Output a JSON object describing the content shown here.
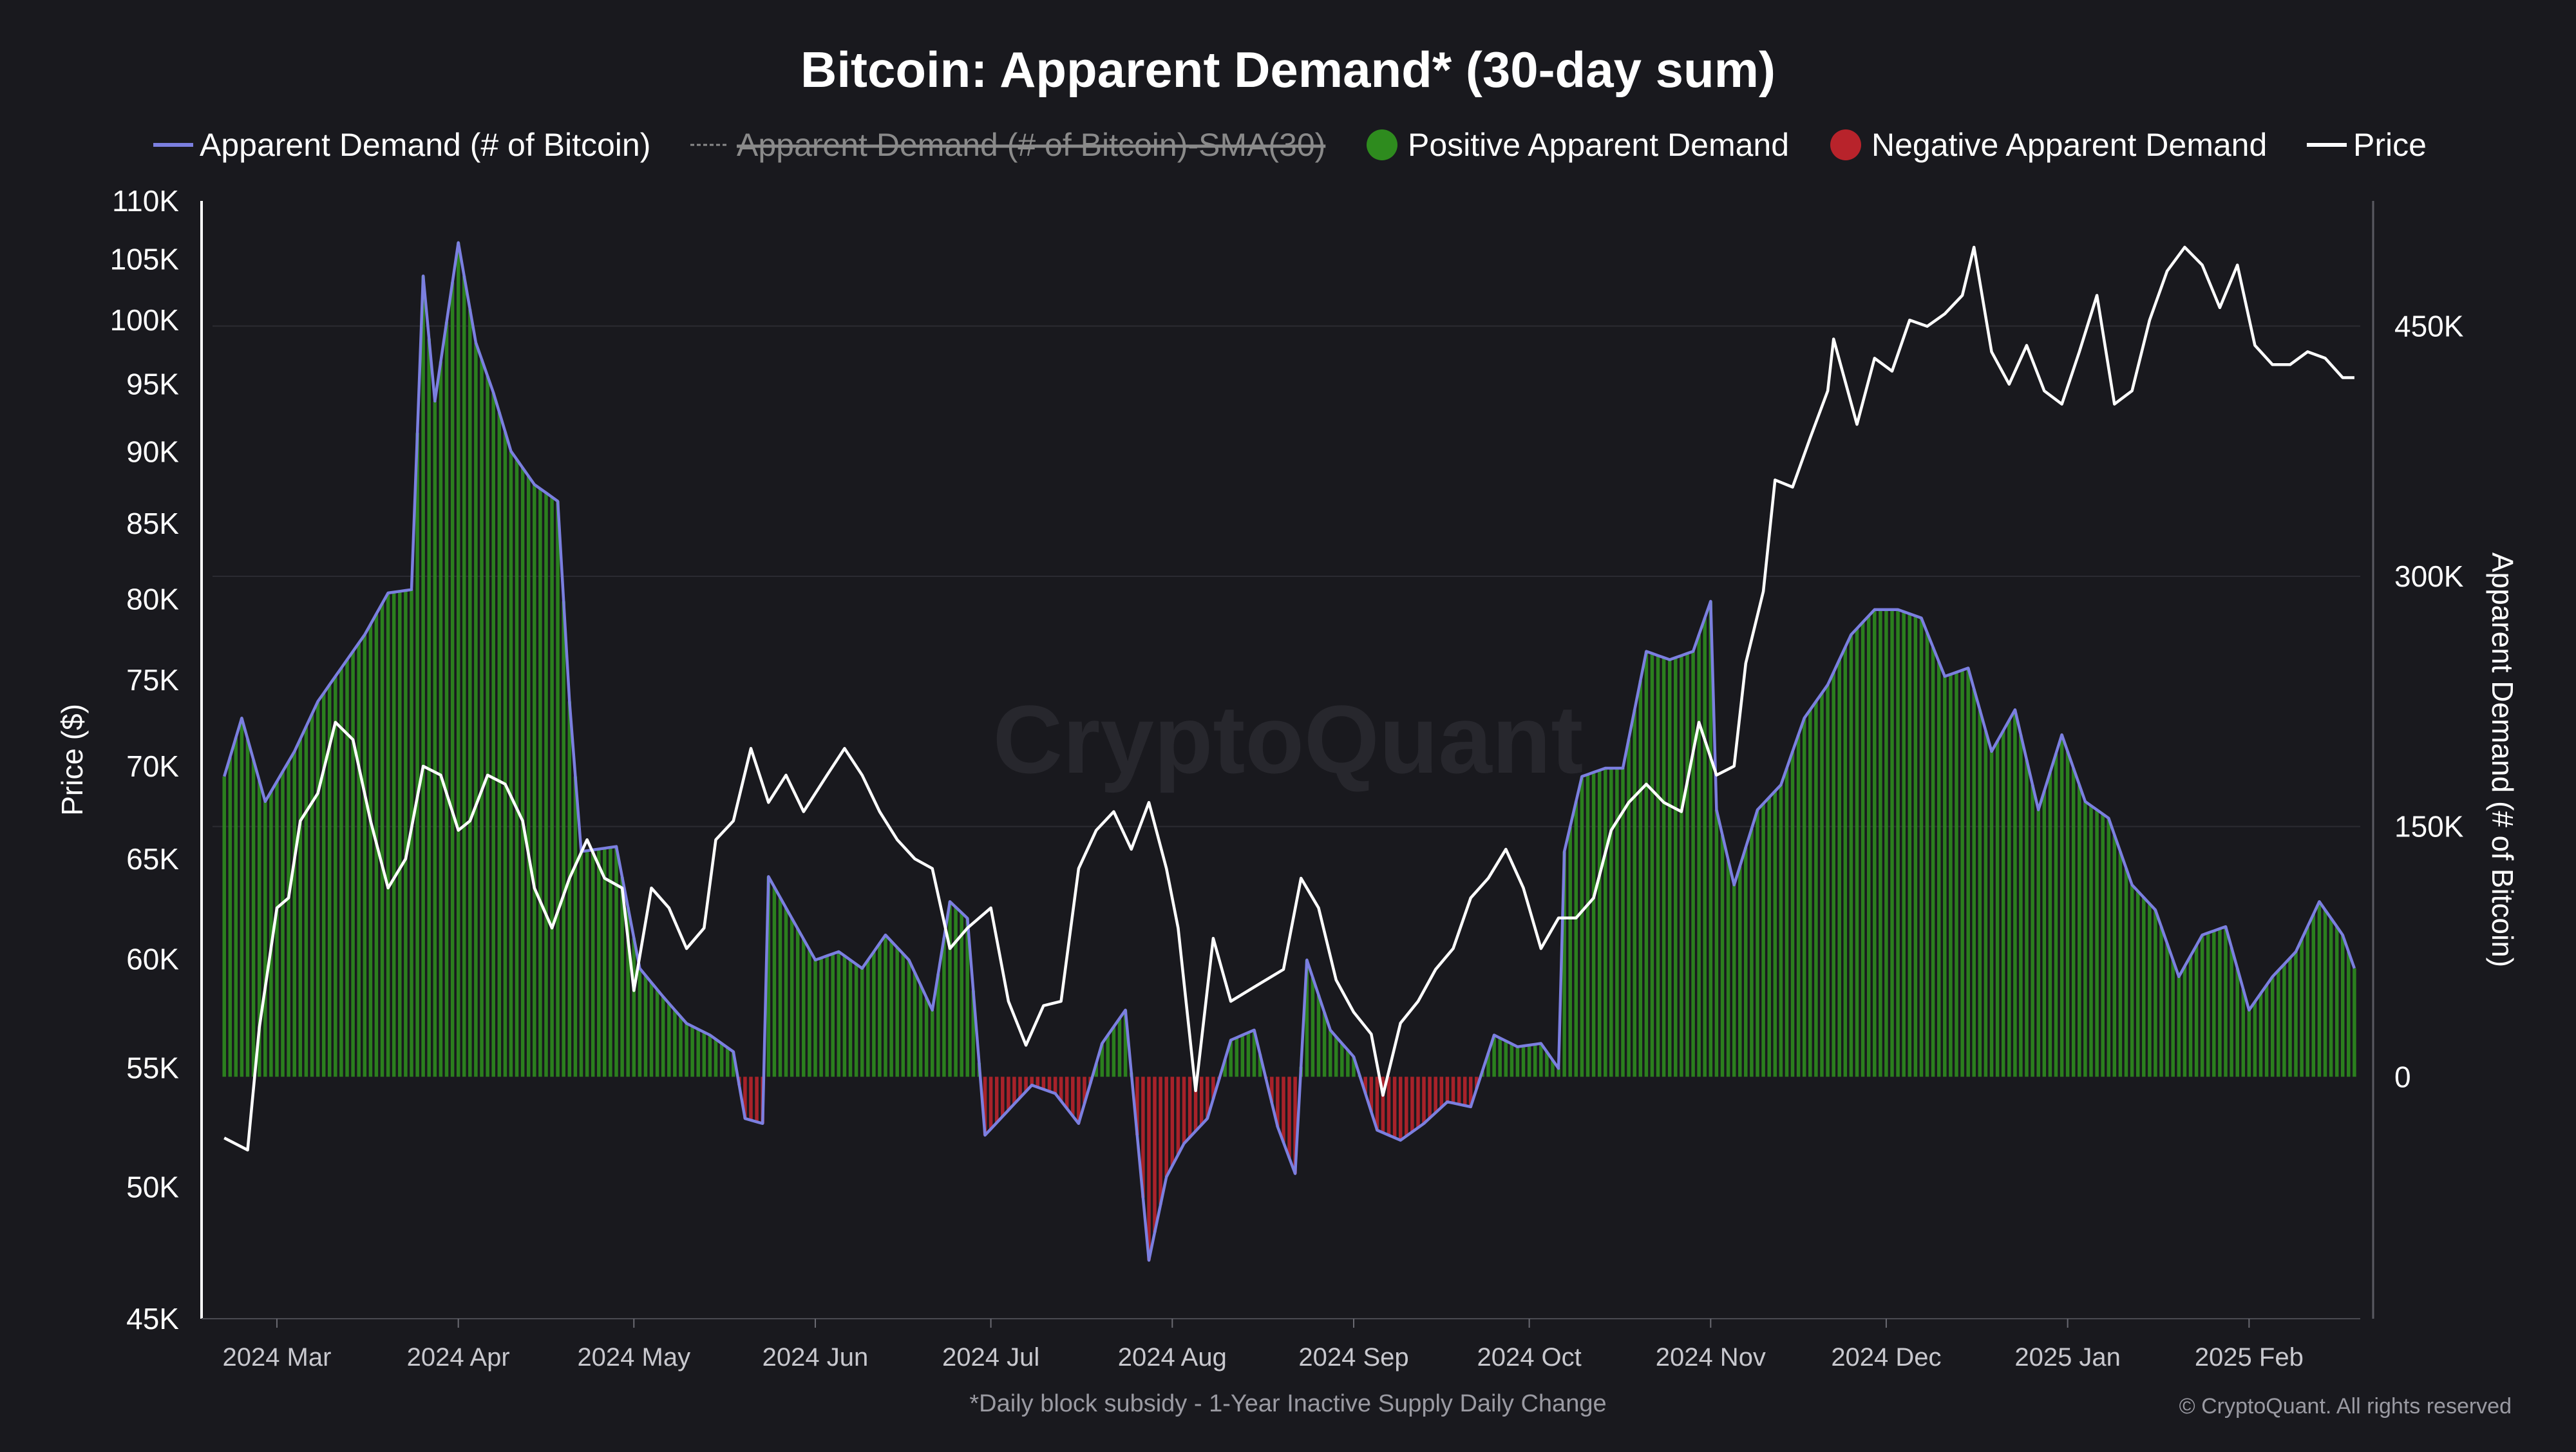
{
  "chart_data": {
    "type": "bar+line",
    "title": "Bitcoin: Apparent Demand* (30-day sum)",
    "footnote": "*Daily block subsidy - 1-Year Inactive Supply Daily Change",
    "copyright": "© CryptoQuant. All rights reserved",
    "watermark": "CryptoQuant",
    "legend_position": "top-center",
    "legend": [
      {
        "name": "Apparent Demand (# of Bitcoin)",
        "marker": "line",
        "color": "#7b7fe0",
        "hidden": false
      },
      {
        "name": "Apparent Demand (# of Bitcoin)-SMA(30)",
        "marker": "dashed-line",
        "color": "#8a8a8a",
        "hidden": true
      },
      {
        "name": "Positive Apparent Demand",
        "marker": "circle",
        "color": "#2e8b1e",
        "hidden": false
      },
      {
        "name": "Negative Apparent Demand",
        "marker": "circle",
        "color": "#b8232b",
        "hidden": false
      },
      {
        "name": "Price",
        "marker": "line",
        "color": "#ffffff",
        "hidden": false
      }
    ],
    "y_left": {
      "label": "Price ($)",
      "scale": "log",
      "range": [
        45000,
        110000
      ],
      "ticks": [
        45000,
        50000,
        55000,
        60000,
        65000,
        70000,
        75000,
        80000,
        85000,
        90000,
        95000,
        100000,
        105000,
        110000
      ],
      "tick_labels": [
        "45K",
        "50K",
        "55K",
        "60K",
        "65K",
        "70K",
        "75K",
        "80K",
        "85K",
        "90K",
        "95K",
        "100K",
        "105K",
        "110K"
      ]
    },
    "y_right": {
      "label": "Apparent Demand (# of Bitcoin)",
      "scale": "linear",
      "range": [
        -145000,
        525000
      ],
      "ticks": [
        0,
        150000,
        300000,
        450000
      ],
      "tick_labels": [
        "0",
        "150K",
        "300K",
        "450K"
      ]
    },
    "x_axis": {
      "range": [
        "2024-02-19",
        "2025-02-20"
      ],
      "ticks": [
        "2024-03-01",
        "2024-04-01",
        "2024-05-01",
        "2024-06-01",
        "2024-07-01",
        "2024-08-01",
        "2024-09-01",
        "2024-10-01",
        "2024-11-01",
        "2024-12-01",
        "2025-01-01",
        "2025-02-01"
      ],
      "tick_labels": [
        "2024 Mar",
        "2024 Apr",
        "2024 May",
        "2024 Jun",
        "2024 Jul",
        "2024 Aug",
        "2024 Sep",
        "2024 Oct",
        "2024 Nov",
        "2024 Dec",
        "2025 Jan",
        "2025 Feb"
      ]
    },
    "grid": {
      "horizontal": true,
      "vertical": false
    },
    "colors": {
      "positive": "#2e8b1e",
      "negative": "#b8232b",
      "demand_line": "#7b7fe0",
      "price_line": "#ffffff",
      "background": "#19191e"
    },
    "series": [
      {
        "name": "Apparent Demand (# of Bitcoin)",
        "axis": "right",
        "points": [
          [
            "2024-02-21",
            180000
          ],
          [
            "2024-02-24",
            215000
          ],
          [
            "2024-02-28",
            165000
          ],
          [
            "2024-03-04",
            195000
          ],
          [
            "2024-03-08",
            225000
          ],
          [
            "2024-03-12",
            245000
          ],
          [
            "2024-03-16",
            265000
          ],
          [
            "2024-03-20",
            290000
          ],
          [
            "2024-03-24",
            292000
          ],
          [
            "2024-03-26",
            480000
          ],
          [
            "2024-03-28",
            405000
          ],
          [
            "2024-04-01",
            500000
          ],
          [
            "2024-04-04",
            440000
          ],
          [
            "2024-04-07",
            410000
          ],
          [
            "2024-04-10",
            375000
          ],
          [
            "2024-04-14",
            355000
          ],
          [
            "2024-04-18",
            345000
          ],
          [
            "2024-04-20",
            225000
          ],
          [
            "2024-04-22",
            135000
          ],
          [
            "2024-04-28",
            138000
          ],
          [
            "2024-05-02",
            65000
          ],
          [
            "2024-05-06",
            48000
          ],
          [
            "2024-05-10",
            32000
          ],
          [
            "2024-05-14",
            25000
          ],
          [
            "2024-05-18",
            15000
          ],
          [
            "2024-05-20",
            -25000
          ],
          [
            "2024-05-23",
            -28000
          ],
          [
            "2024-05-24",
            120000
          ],
          [
            "2024-05-28",
            95000
          ],
          [
            "2024-06-01",
            70000
          ],
          [
            "2024-06-05",
            75000
          ],
          [
            "2024-06-09",
            65000
          ],
          [
            "2024-06-13",
            85000
          ],
          [
            "2024-06-17",
            70000
          ],
          [
            "2024-06-21",
            40000
          ],
          [
            "2024-06-24",
            105000
          ],
          [
            "2024-06-27",
            95000
          ],
          [
            "2024-06-30",
            -35000
          ],
          [
            "2024-07-04",
            -20000
          ],
          [
            "2024-07-08",
            -5000
          ],
          [
            "2024-07-12",
            -10000
          ],
          [
            "2024-07-16",
            -28000
          ],
          [
            "2024-07-20",
            20000
          ],
          [
            "2024-07-24",
            40000
          ],
          [
            "2024-07-28",
            -110000
          ],
          [
            "2024-07-31",
            -60000
          ],
          [
            "2024-08-03",
            -40000
          ],
          [
            "2024-08-07",
            -25000
          ],
          [
            "2024-08-11",
            22000
          ],
          [
            "2024-08-15",
            28000
          ],
          [
            "2024-08-19",
            -30000
          ],
          [
            "2024-08-22",
            -58000
          ],
          [
            "2024-08-24",
            70000
          ],
          [
            "2024-08-28",
            28000
          ],
          [
            "2024-09-01",
            12000
          ],
          [
            "2024-09-05",
            -32000
          ],
          [
            "2024-09-09",
            -38000
          ],
          [
            "2024-09-13",
            -28000
          ],
          [
            "2024-09-17",
            -15000
          ],
          [
            "2024-09-21",
            -18000
          ],
          [
            "2024-09-25",
            25000
          ],
          [
            "2024-09-29",
            18000
          ],
          [
            "2024-10-03",
            20000
          ],
          [
            "2024-10-06",
            5000
          ],
          [
            "2024-10-07",
            135000
          ],
          [
            "2024-10-10",
            180000
          ],
          [
            "2024-10-14",
            185000
          ],
          [
            "2024-10-17",
            185000
          ],
          [
            "2024-10-21",
            255000
          ],
          [
            "2024-10-25",
            250000
          ],
          [
            "2024-10-29",
            255000
          ],
          [
            "2024-11-01",
            285000
          ],
          [
            "2024-11-02",
            160000
          ],
          [
            "2024-11-05",
            115000
          ],
          [
            "2024-11-09",
            160000
          ],
          [
            "2024-11-13",
            175000
          ],
          [
            "2024-11-17",
            215000
          ],
          [
            "2024-11-21",
            235000
          ],
          [
            "2024-11-25",
            265000
          ],
          [
            "2024-11-29",
            280000
          ],
          [
            "2024-12-03",
            280000
          ],
          [
            "2024-12-07",
            275000
          ],
          [
            "2024-12-11",
            240000
          ],
          [
            "2024-12-15",
            245000
          ],
          [
            "2024-12-19",
            195000
          ],
          [
            "2024-12-23",
            220000
          ],
          [
            "2024-12-27",
            160000
          ],
          [
            "2024-12-31",
            205000
          ],
          [
            "2025-01-04",
            165000
          ],
          [
            "2025-01-08",
            155000
          ],
          [
            "2025-01-12",
            115000
          ],
          [
            "2025-01-16",
            100000
          ],
          [
            "2025-01-20",
            60000
          ],
          [
            "2025-01-24",
            85000
          ],
          [
            "2025-01-28",
            90000
          ],
          [
            "2025-02-01",
            40000
          ],
          [
            "2025-02-05",
            60000
          ],
          [
            "2025-02-09",
            75000
          ],
          [
            "2025-02-13",
            105000
          ],
          [
            "2025-02-17",
            85000
          ],
          [
            "2025-02-19",
            65000
          ]
        ]
      },
      {
        "name": "Price",
        "axis": "left",
        "points": [
          [
            "2024-02-21",
            52000
          ],
          [
            "2024-02-25",
            51500
          ],
          [
            "2024-02-27",
            56800
          ],
          [
            "2024-03-01",
            62500
          ],
          [
            "2024-03-03",
            63000
          ],
          [
            "2024-03-05",
            67000
          ],
          [
            "2024-03-08",
            68500
          ],
          [
            "2024-03-11",
            72500
          ],
          [
            "2024-03-14",
            71500
          ],
          [
            "2024-03-17",
            67000
          ],
          [
            "2024-03-20",
            63500
          ],
          [
            "2024-03-23",
            65000
          ],
          [
            "2024-03-26",
            70000
          ],
          [
            "2024-03-29",
            69500
          ],
          [
            "2024-04-01",
            66500
          ],
          [
            "2024-04-03",
            67000
          ],
          [
            "2024-04-06",
            69500
          ],
          [
            "2024-04-09",
            69000
          ],
          [
            "2024-04-12",
            67000
          ],
          [
            "2024-04-14",
            63500
          ],
          [
            "2024-04-17",
            61500
          ],
          [
            "2024-04-20",
            64000
          ],
          [
            "2024-04-23",
            66000
          ],
          [
            "2024-04-26",
            64000
          ],
          [
            "2024-04-29",
            63500
          ],
          [
            "2024-05-01",
            58500
          ],
          [
            "2024-05-04",
            63500
          ],
          [
            "2024-05-07",
            62500
          ],
          [
            "2024-05-10",
            60500
          ],
          [
            "2024-05-13",
            61500
          ],
          [
            "2024-05-15",
            66000
          ],
          [
            "2024-05-18",
            67000
          ],
          [
            "2024-05-21",
            71000
          ],
          [
            "2024-05-24",
            68000
          ],
          [
            "2024-05-27",
            69500
          ],
          [
            "2024-05-30",
            67500
          ],
          [
            "2024-06-03",
            69500
          ],
          [
            "2024-06-06",
            71000
          ],
          [
            "2024-06-09",
            69500
          ],
          [
            "2024-06-12",
            67500
          ],
          [
            "2024-06-15",
            66000
          ],
          [
            "2024-06-18",
            65000
          ],
          [
            "2024-06-21",
            64500
          ],
          [
            "2024-06-24",
            60500
          ],
          [
            "2024-06-27",
            61500
          ],
          [
            "2024-07-01",
            62500
          ],
          [
            "2024-07-04",
            58000
          ],
          [
            "2024-07-07",
            56000
          ],
          [
            "2024-07-10",
            57800
          ],
          [
            "2024-07-13",
            58000
          ],
          [
            "2024-07-16",
            64500
          ],
          [
            "2024-07-19",
            66500
          ],
          [
            "2024-07-22",
            67500
          ],
          [
            "2024-07-25",
            65500
          ],
          [
            "2024-07-28",
            68000
          ],
          [
            "2024-07-31",
            64500
          ],
          [
            "2024-08-02",
            61500
          ],
          [
            "2024-08-05",
            54000
          ],
          [
            "2024-08-08",
            61000
          ],
          [
            "2024-08-11",
            58000
          ],
          [
            "2024-08-14",
            58500
          ],
          [
            "2024-08-17",
            59000
          ],
          [
            "2024-08-20",
            59500
          ],
          [
            "2024-08-23",
            64000
          ],
          [
            "2024-08-26",
            62500
          ],
          [
            "2024-08-29",
            59000
          ],
          [
            "2024-09-01",
            57500
          ],
          [
            "2024-09-04",
            56500
          ],
          [
            "2024-09-06",
            53800
          ],
          [
            "2024-09-09",
            57000
          ],
          [
            "2024-09-12",
            58000
          ],
          [
            "2024-09-15",
            59500
          ],
          [
            "2024-09-18",
            60500
          ],
          [
            "2024-09-21",
            63000
          ],
          [
            "2024-09-24",
            64000
          ],
          [
            "2024-09-27",
            65500
          ],
          [
            "2024-09-30",
            63500
          ],
          [
            "2024-10-03",
            60500
          ],
          [
            "2024-10-06",
            62000
          ],
          [
            "2024-10-09",
            62000
          ],
          [
            "2024-10-12",
            63000
          ],
          [
            "2024-10-15",
            66500
          ],
          [
            "2024-10-18",
            68000
          ],
          [
            "2024-10-21",
            69000
          ],
          [
            "2024-10-24",
            68000
          ],
          [
            "2024-10-27",
            67500
          ],
          [
            "2024-10-30",
            72500
          ],
          [
            "2024-11-02",
            69500
          ],
          [
            "2024-11-05",
            70000
          ],
          [
            "2024-11-07",
            76000
          ],
          [
            "2024-11-10",
            80500
          ],
          [
            "2024-11-12",
            88000
          ],
          [
            "2024-11-15",
            87500
          ],
          [
            "2024-11-18",
            91000
          ],
          [
            "2024-11-21",
            94500
          ],
          [
            "2024-11-22",
            98500
          ],
          [
            "2024-11-26",
            92000
          ],
          [
            "2024-11-29",
            97000
          ],
          [
            "2024-12-02",
            96000
          ],
          [
            "2024-12-05",
            100000
          ],
          [
            "2024-12-08",
            99500
          ],
          [
            "2024-12-11",
            100500
          ],
          [
            "2024-12-14",
            102000
          ],
          [
            "2024-12-16",
            106000
          ],
          [
            "2024-12-19",
            97500
          ],
          [
            "2024-12-22",
            95000
          ],
          [
            "2024-12-25",
            98000
          ],
          [
            "2024-12-28",
            94500
          ],
          [
            "2024-12-31",
            93500
          ],
          [
            "2025-01-03",
            97500
          ],
          [
            "2025-01-06",
            102000
          ],
          [
            "2025-01-09",
            93500
          ],
          [
            "2025-01-12",
            94500
          ],
          [
            "2025-01-15",
            100000
          ],
          [
            "2025-01-18",
            104000
          ],
          [
            "2025-01-21",
            106000
          ],
          [
            "2025-01-24",
            104500
          ],
          [
            "2025-01-27",
            101000
          ],
          [
            "2025-01-30",
            104500
          ],
          [
            "2025-02-02",
            98000
          ],
          [
            "2025-02-05",
            96500
          ],
          [
            "2025-02-08",
            96500
          ],
          [
            "2025-02-11",
            97500
          ],
          [
            "2025-02-14",
            97000
          ],
          [
            "2025-02-17",
            95500
          ],
          [
            "2025-02-19",
            95500
          ]
        ]
      }
    ]
  }
}
